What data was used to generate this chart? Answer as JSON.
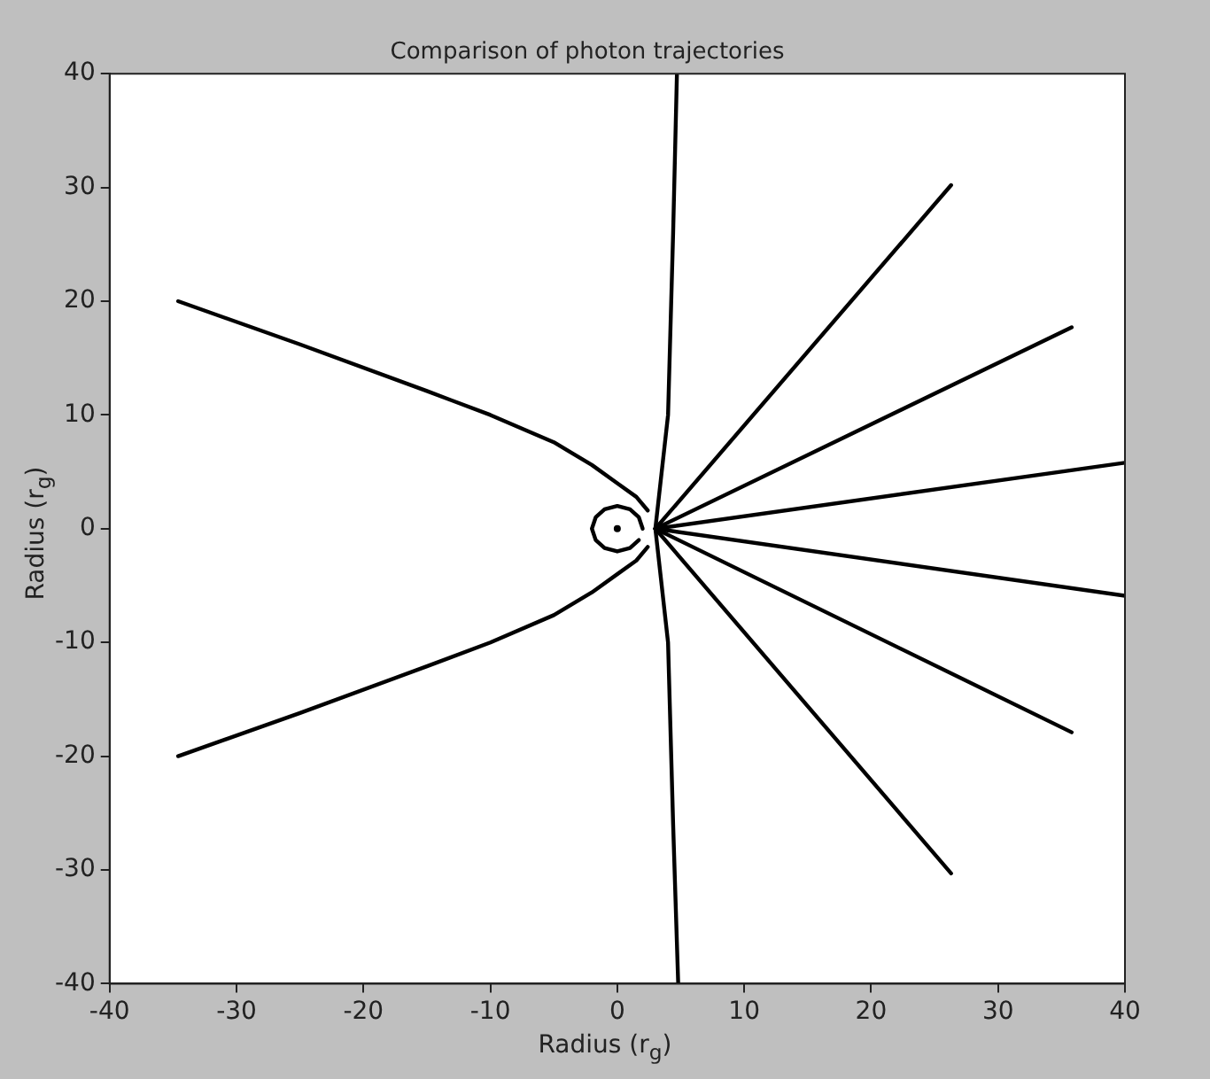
{
  "chart_data": {
    "type": "line",
    "title": "Comparison of photon trajectories",
    "xlabel": "Radius (r$_{g}$)",
    "ylabel": "Radius (r$_{g}$)",
    "xlim": [
      -40,
      40
    ],
    "ylim": [
      -40,
      40
    ],
    "xticks": [
      -40,
      -30,
      -20,
      -10,
      0,
      10,
      20,
      30,
      40
    ],
    "yticks": [
      -40,
      -30,
      -20,
      -10,
      0,
      10,
      20,
      30,
      40
    ],
    "grid": false,
    "legend": false,
    "series": [
      {
        "color": "#000000",
        "x": [
          -34.6,
          -25,
          -15,
          -10,
          -5,
          -2,
          0,
          1.5,
          2.4
        ],
        "values": [
          20,
          16.2,
          12.1,
          10,
          7.6,
          5.6,
          4,
          2.8,
          1.6
        ]
      },
      {
        "color": "#000000",
        "x": [
          -34.6,
          -25,
          -15,
          -10,
          -5,
          -2,
          0,
          1.5,
          2.4
        ],
        "values": [
          -20,
          -16.2,
          -12.1,
          -10,
          -7.6,
          -5.6,
          -4,
          -2.8,
          -1.6
        ]
      },
      {
        "color": "#000000",
        "x": [
          4.8,
          4.4,
          4,
          3,
          4,
          4.4,
          4.7
        ],
        "values": [
          -40,
          -26,
          -10,
          0,
          10,
          26,
          40
        ]
      },
      {
        "color": "#000000",
        "x": [
          3,
          26.3
        ],
        "values": [
          0,
          30.2
        ]
      },
      {
        "color": "#000000",
        "x": [
          3,
          35.8
        ],
        "values": [
          0,
          17.7
        ]
      },
      {
        "color": "#000000",
        "x": [
          3,
          40
        ],
        "values": [
          0,
          5.8
        ]
      },
      {
        "color": "#000000",
        "x": [
          3,
          40
        ],
        "values": [
          0,
          -5.9
        ]
      },
      {
        "color": "#000000",
        "x": [
          3,
          35.8
        ],
        "values": [
          0,
          -17.9
        ]
      },
      {
        "color": "#000000",
        "x": [
          3,
          26.3
        ],
        "values": [
          0,
          -30.3
        ]
      },
      {
        "color": "#000000",
        "x": [
          2,
          1.7,
          1,
          0,
          -1,
          -1.7,
          -2,
          -1.7,
          -1,
          0,
          1,
          1.7
        ],
        "values": [
          0,
          1,
          1.7,
          2,
          1.7,
          1,
          0,
          -1,
          -1.7,
          -2,
          -1.7,
          -1
        ]
      },
      {
        "type": "scatter",
        "marker": "circle",
        "color": "#000000",
        "x": [
          0
        ],
        "values": [
          0
        ]
      }
    ]
  }
}
